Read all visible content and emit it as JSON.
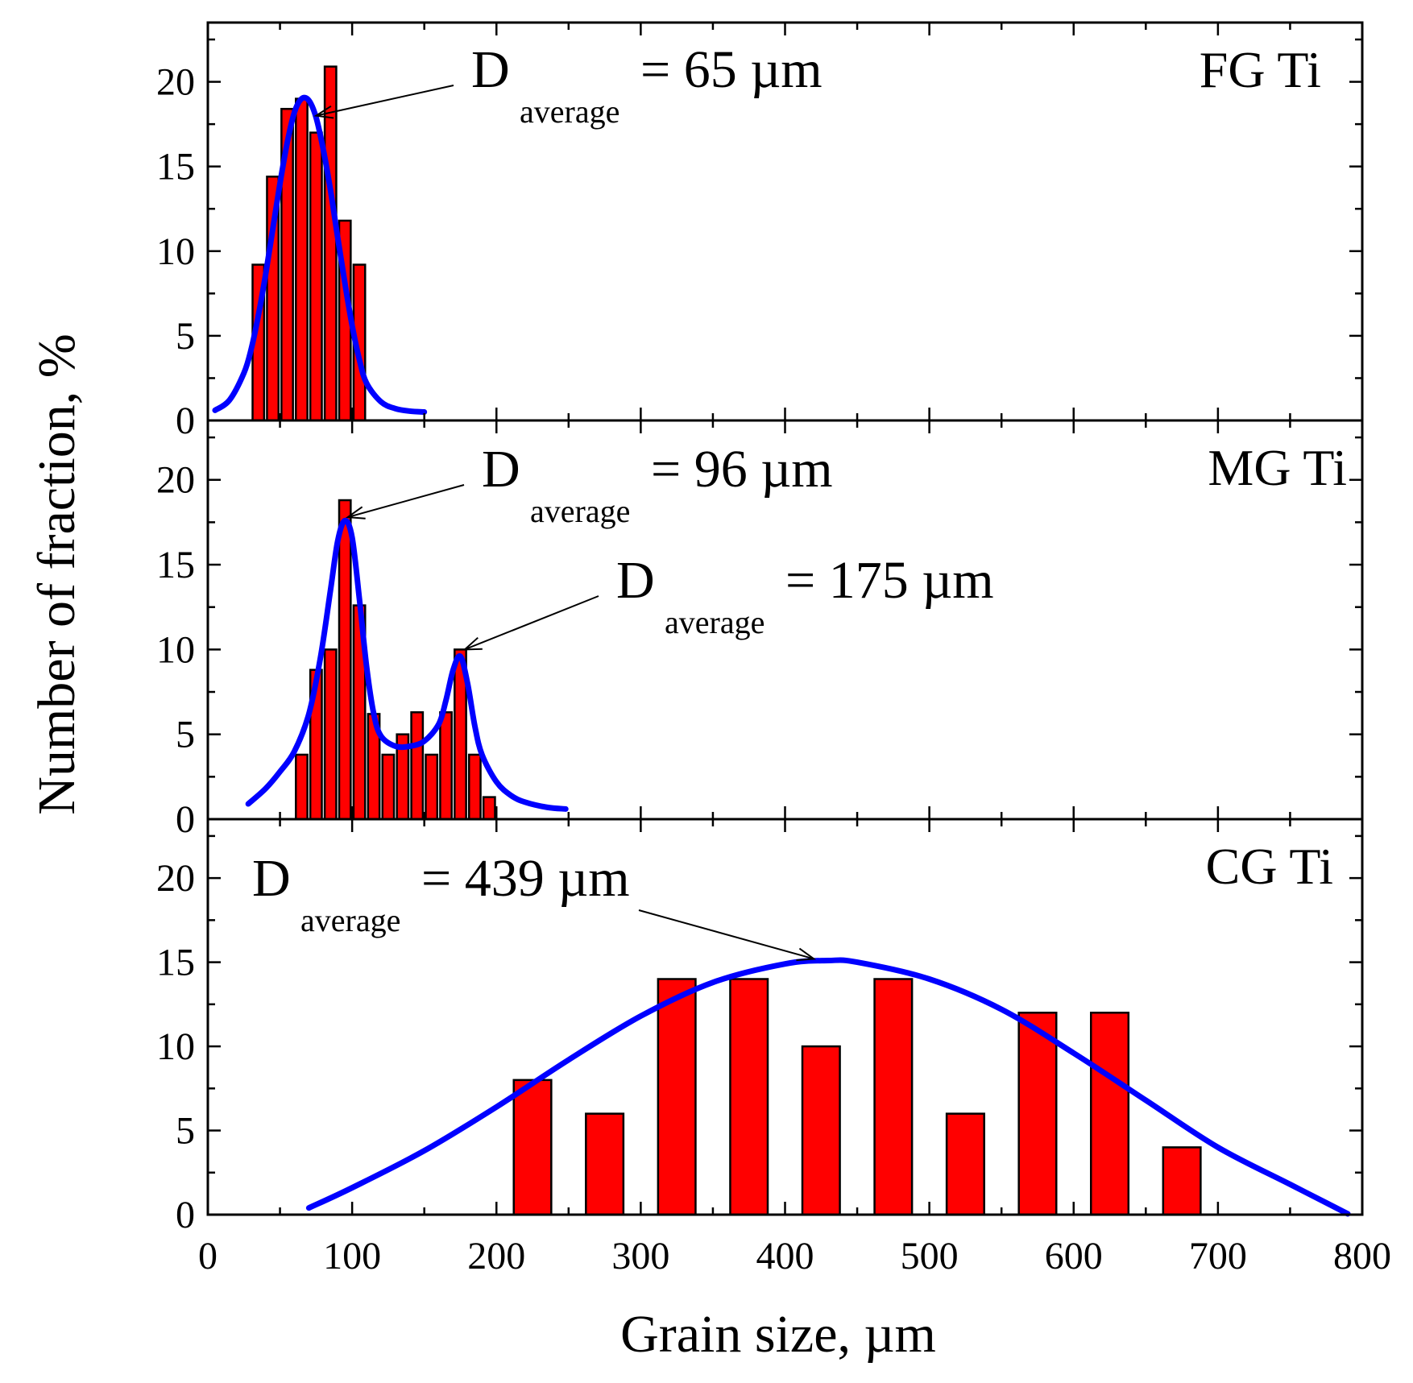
{
  "figure": {
    "xlabel": "Grain size, µm",
    "ylabel": "Number of fraction, %"
  },
  "chart_data": [
    {
      "type": "bar",
      "panel_label": "FG Ti",
      "xlim": [
        0,
        800
      ],
      "ylim": [
        0,
        23.5
      ],
      "x_ticks": [
        0,
        100,
        200,
        300,
        400,
        500,
        600,
        700,
        800
      ],
      "y_ticks": [
        0,
        5,
        10,
        15,
        20
      ],
      "bar_color": "#ff0000",
      "curve_color": "#0000ff",
      "bars": [
        {
          "x": 35,
          "value": 9.2
        },
        {
          "x": 45,
          "value": 14.4
        },
        {
          "x": 55,
          "value": 18.4
        },
        {
          "x": 65,
          "value": 19.0
        },
        {
          "x": 75,
          "value": 17.0
        },
        {
          "x": 85,
          "value": 20.9
        },
        {
          "x": 95,
          "value": 11.8
        },
        {
          "x": 105,
          "value": 9.2
        }
      ],
      "bar_width": 8,
      "fit_curve": {
        "x": [
          5,
          15,
          25,
          30,
          35,
          40,
          45,
          50,
          55,
          60,
          65,
          70,
          75,
          80,
          85,
          90,
          95,
          100,
          105,
          110,
          120,
          130,
          140,
          150
        ],
        "y": [
          0.6,
          1.2,
          2.8,
          4.2,
          6.2,
          8.6,
          11.3,
          14.0,
          16.4,
          18.2,
          19.0,
          18.9,
          17.9,
          16.0,
          13.6,
          10.8,
          8.1,
          5.6,
          3.6,
          2.2,
          1.1,
          0.7,
          0.55,
          0.5
        ]
      },
      "annotations": [
        {
          "main": "D",
          "sub": "average",
          "rest": "= 65 µm",
          "points_to": [
            75,
            18.0
          ]
        }
      ]
    },
    {
      "type": "bar",
      "panel_label": "MG Ti",
      "xlim": [
        0,
        800
      ],
      "ylim": [
        0,
        23.5
      ],
      "x_ticks": [
        0,
        100,
        200,
        300,
        400,
        500,
        600,
        700,
        800
      ],
      "y_ticks": [
        0,
        5,
        10,
        15,
        20
      ],
      "bar_color": "#ff0000",
      "curve_color": "#0000ff",
      "bars": [
        {
          "x": 65,
          "value": 3.8
        },
        {
          "x": 75,
          "value": 8.8
        },
        {
          "x": 85,
          "value": 10.0
        },
        {
          "x": 95,
          "value": 18.8
        },
        {
          "x": 105,
          "value": 12.6
        },
        {
          "x": 115,
          "value": 6.2
        },
        {
          "x": 125,
          "value": 3.8
        },
        {
          "x": 135,
          "value": 5.0
        },
        {
          "x": 145,
          "value": 6.3
        },
        {
          "x": 155,
          "value": 3.8
        },
        {
          "x": 165,
          "value": 6.3
        },
        {
          "x": 175,
          "value": 10.0
        },
        {
          "x": 185,
          "value": 3.8
        },
        {
          "x": 195,
          "value": 1.3
        }
      ],
      "bar_width": 8,
      "fit_curve": {
        "x": [
          28,
          40,
          50,
          60,
          70,
          78,
          85,
          90,
          95,
          100,
          105,
          110,
          115,
          120,
          130,
          140,
          150,
          160,
          165,
          170,
          175,
          180,
          185,
          190,
          200,
          210,
          220,
          235,
          248
        ],
        "y": [
          0.9,
          1.8,
          2.8,
          4.0,
          6.2,
          9.5,
          13.5,
          16.4,
          17.6,
          16.6,
          13.0,
          9.0,
          6.2,
          4.9,
          4.3,
          4.3,
          4.6,
          5.6,
          7.0,
          8.8,
          9.6,
          8.0,
          5.5,
          3.8,
          2.2,
          1.4,
          1.0,
          0.7,
          0.6
        ]
      },
      "annotations": [
        {
          "main": "D",
          "sub": "average",
          "rest": "= 96 µm",
          "points_to": [
            97,
            17.8
          ]
        },
        {
          "main": "D",
          "sub": "average",
          "rest": "= 175 µm",
          "points_to": [
            178,
            10.0
          ]
        }
      ]
    },
    {
      "type": "bar",
      "panel_label": "CG Ti",
      "xlim": [
        0,
        800
      ],
      "ylim": [
        0,
        23.5
      ],
      "x_ticks": [
        0,
        100,
        200,
        300,
        400,
        500,
        600,
        700,
        800
      ],
      "y_ticks": [
        0,
        5,
        10,
        15,
        20
      ],
      "bar_color": "#ff0000",
      "curve_color": "#0000ff",
      "bars": [
        {
          "x": 225,
          "value": 8
        },
        {
          "x": 275,
          "value": 6
        },
        {
          "x": 325,
          "value": 14
        },
        {
          "x": 375,
          "value": 14
        },
        {
          "x": 425,
          "value": 10
        },
        {
          "x": 475,
          "value": 14
        },
        {
          "x": 525,
          "value": 6
        },
        {
          "x": 575,
          "value": 12
        },
        {
          "x": 625,
          "value": 12
        },
        {
          "x": 675,
          "value": 4
        }
      ],
      "bar_width": 26,
      "fit_curve": {
        "x": [
          70,
          100,
          150,
          200,
          250,
          300,
          350,
          400,
          430,
          450,
          500,
          550,
          600,
          650,
          700,
          750,
          790
        ],
        "y": [
          0.4,
          1.6,
          3.8,
          6.4,
          9.2,
          11.8,
          13.8,
          14.9,
          15.1,
          15.0,
          14.0,
          12.2,
          9.6,
          6.8,
          4.0,
          1.8,
          0.05
        ]
      },
      "annotations": [
        {
          "main": "D",
          "sub": "average",
          "rest": "= 439 µm",
          "points_to": [
            420,
            15.2
          ]
        }
      ]
    }
  ]
}
